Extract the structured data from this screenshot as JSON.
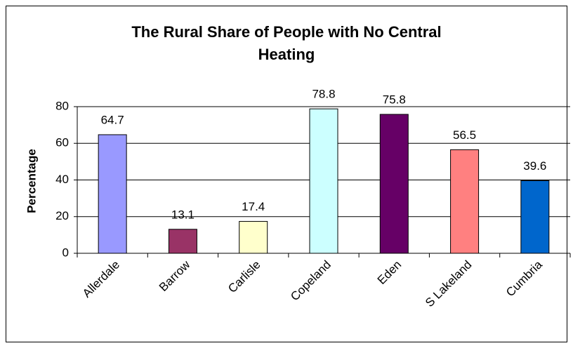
{
  "chart_data": {
    "type": "bar",
    "title": "The Rural Share of People with No Central Heating",
    "y_label": "Percentage",
    "categories": [
      "Allerdale",
      "Barrow",
      "Carlisle",
      "Copeland",
      "Eden",
      "S Lakeland",
      "Cumbria"
    ],
    "values": [
      64.7,
      13.1,
      17.4,
      78.8,
      75.8,
      56.5,
      39.6
    ],
    "colors": [
      "#9999ff",
      "#993366",
      "#ffffcc",
      "#ccffff",
      "#660066",
      "#ff8080",
      "#0066cc"
    ],
    "ylim": [
      0,
      80
    ],
    "yticks": [
      0,
      20,
      40,
      60,
      80
    ],
    "grid": true
  }
}
